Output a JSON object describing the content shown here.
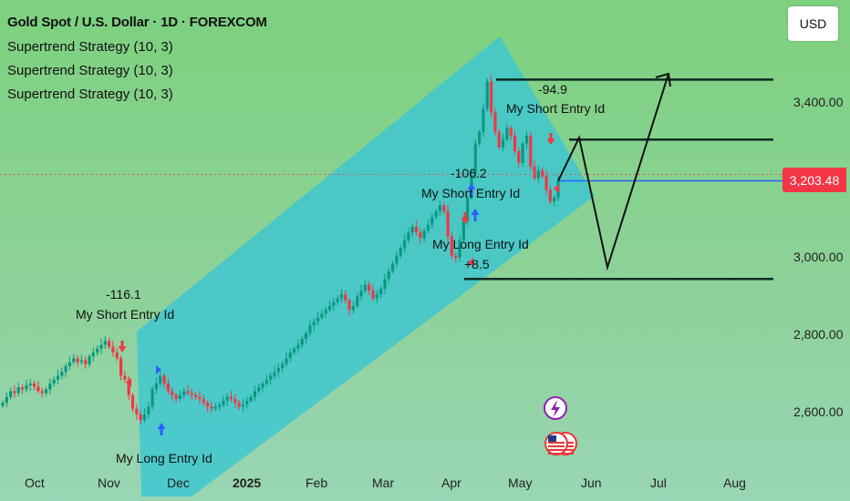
{
  "header": {
    "title": "Gold Spot / U.S. Dollar · 1D · FOREXCOM",
    "indicators": [
      "Supertrend Strategy (10, 3)",
      "Supertrend Strategy (10, 3)",
      "Supertrend Strategy (10, 3)"
    ],
    "currency": "USD"
  },
  "price_tag": "3,203.48",
  "colors": {
    "channel": "#3fc7cf",
    "up": "#089981",
    "down": "#f23645",
    "current_line": "#2962ff",
    "level_line": "#0b2a24",
    "arrow_up": "#2962ff"
  },
  "chart_data": {
    "type": "candlestick",
    "title": "Gold Spot / U.S. Dollar · 1D · FOREXCOM",
    "y_ticks": [
      "3,400.00",
      "3,000.00",
      "2,800.00",
      "2,600.00"
    ],
    "y_tick_values": [
      3400,
      3000,
      2800,
      2600
    ],
    "ylim": [
      2555,
      3525
    ],
    "x_ticks": [
      "Oct",
      "Nov",
      "Dec",
      "2025",
      "Feb",
      "Mar",
      "Apr",
      "May",
      "Jun",
      "Jul",
      "Aug"
    ],
    "current_price": 3203.48,
    "approx_daily_closes": [
      2630,
      2645,
      2660,
      2655,
      2670,
      2665,
      2675,
      2680,
      2672,
      2660,
      2655,
      2665,
      2680,
      2690,
      2700,
      2710,
      2725,
      2735,
      2745,
      2735,
      2740,
      2730,
      2750,
      2760,
      2770,
      2780,
      2790,
      2775,
      2760,
      2745,
      2700,
      2690,
      2650,
      2615,
      2600,
      2585,
      2600,
      2620,
      2665,
      2680,
      2700,
      2680,
      2660,
      2650,
      2640,
      2650,
      2660,
      2655,
      2650,
      2645,
      2640,
      2630,
      2620,
      2615,
      2620,
      2625,
      2635,
      2645,
      2640,
      2630,
      2620,
      2625,
      2635,
      2645,
      2660,
      2670,
      2680,
      2690,
      2700,
      2710,
      2720,
      2730,
      2745,
      2760,
      2770,
      2780,
      2795,
      2810,
      2830,
      2840,
      2850,
      2860,
      2870,
      2880,
      2890,
      2900,
      2910,
      2895,
      2870,
      2880,
      2905,
      2920,
      2935,
      2920,
      2900,
      2910,
      2925,
      2950,
      2970,
      2990,
      3010,
      3030,
      3050,
      3070,
      3085,
      3070,
      3055,
      3075,
      3090,
      3110,
      3125,
      3140,
      3125,
      3060,
      3010,
      3005,
      3050,
      3100,
      3160,
      3220,
      3300,
      3330,
      3390,
      3460,
      3380,
      3330,
      3290,
      3310,
      3340,
      3320,
      3280,
      3250,
      3300,
      3320,
      3240,
      3210,
      3230,
      3215,
      3180,
      3150,
      3160,
      3203
    ],
    "levels": [
      3465,
      3310,
      2950
    ],
    "annotations": [
      {
        "signal": "-116.1",
        "label": "My Short Entry Id"
      },
      {
        "label": "My Long Entry Id"
      },
      {
        "signal": "-106.2",
        "label": "My Short Entry Id"
      },
      {
        "label": "My Long Entry Id"
      },
      {
        "signal": "+8.5"
      },
      {
        "signal": "-94.9",
        "label": "My Short Entry Id"
      }
    ],
    "projection_values": [
      3203,
      3315,
      2980,
      3480
    ]
  }
}
